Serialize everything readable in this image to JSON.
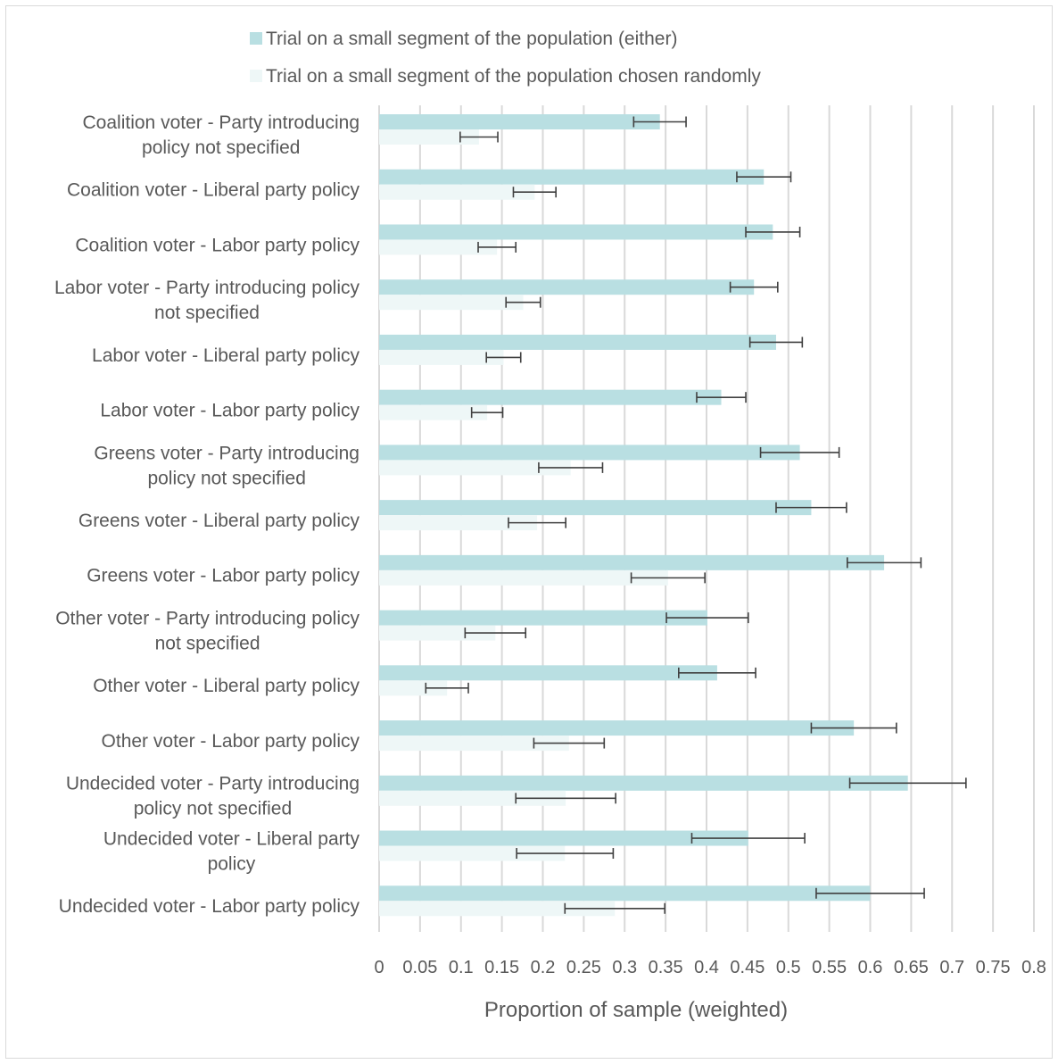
{
  "chart_data": {
    "type": "bar",
    "orientation": "horizontal",
    "categories": [
      "Coalition voter - Party introducing policy not specified",
      "Coalition voter - Liberal party policy",
      "Coalition voter - Labor party policy",
      "Labor voter - Party introducing policy not specified",
      "Labor voter - Liberal party policy",
      "Labor voter - Labor party policy",
      "Greens voter - Party introducing policy not specified",
      "Greens voter - Liberal party policy",
      "Greens voter - Labor party policy",
      "Other voter - Party introducing policy not specified",
      "Other voter - Liberal party policy",
      "Other voter - Labor party policy",
      "Undecided voter - Party introducing policy not specified",
      "Undecided voter - Liberal party policy",
      "Undecided voter - Labor party policy"
    ],
    "category_lines": [
      [
        "Coalition voter - Party introducing",
        "policy not specified"
      ],
      [
        "Coalition voter - Liberal party policy"
      ],
      [
        "Coalition voter - Labor party policy"
      ],
      [
        "Labor voter - Party introducing policy",
        "not specified"
      ],
      [
        "Labor voter - Liberal party policy"
      ],
      [
        "Labor voter - Labor party policy"
      ],
      [
        "Greens voter - Party introducing",
        "policy not specified"
      ],
      [
        "Greens voter - Liberal party policy"
      ],
      [
        "Greens voter - Labor party policy"
      ],
      [
        "Other voter - Party introducing policy",
        "not specified"
      ],
      [
        "Other voter - Liberal party policy"
      ],
      [
        "Other voter - Labor party policy"
      ],
      [
        "Undecided voter - Party introducing",
        "policy not specified"
      ],
      [
        "Undecided voter - Liberal party",
        "policy"
      ],
      [
        "Undecided voter - Labor party policy"
      ]
    ],
    "series": [
      {
        "name": "Trial on a small segment of the population (either)",
        "color": "#b9dfe2",
        "values": [
          0.343,
          0.47,
          0.481,
          0.458,
          0.485,
          0.418,
          0.514,
          0.528,
          0.617,
          0.401,
          0.413,
          0.58,
          0.646,
          0.451,
          0.6
        ],
        "error_low": [
          0.311,
          0.437,
          0.448,
          0.429,
          0.453,
          0.388,
          0.466,
          0.485,
          0.572,
          0.351,
          0.366,
          0.528,
          0.575,
          0.382,
          0.534
        ],
        "error_high": [
          0.375,
          0.503,
          0.514,
          0.487,
          0.517,
          0.448,
          0.562,
          0.571,
          0.662,
          0.451,
          0.46,
          0.632,
          0.717,
          0.52,
          0.666
        ]
      },
      {
        "name": "Trial on a small segment of the population chosen randomly",
        "color": "#eef7f7",
        "values": [
          0.122,
          0.19,
          0.144,
          0.176,
          0.152,
          0.132,
          0.234,
          0.193,
          0.353,
          0.142,
          0.083,
          0.232,
          0.228,
          0.227,
          0.288
        ],
        "error_low": [
          0.099,
          0.164,
          0.121,
          0.155,
          0.131,
          0.113,
          0.195,
          0.158,
          0.308,
          0.105,
          0.057,
          0.189,
          0.167,
          0.168,
          0.227
        ],
        "error_high": [
          0.145,
          0.216,
          0.167,
          0.197,
          0.173,
          0.151,
          0.273,
          0.228,
          0.398,
          0.179,
          0.109,
          0.275,
          0.289,
          0.286,
          0.349
        ]
      }
    ],
    "xlabel": "Proportion of sample (weighted)",
    "xlim": [
      0,
      0.8
    ],
    "xticks": [
      0,
      0.05,
      0.1,
      0.15,
      0.2,
      0.25,
      0.3,
      0.35,
      0.4,
      0.45,
      0.5,
      0.55,
      0.6,
      0.65,
      0.7,
      0.75,
      0.8
    ],
    "xtick_labels": [
      "0",
      "0.05",
      "0.1",
      "0.15",
      "0.2",
      "0.25",
      "0.3",
      "0.35",
      "0.4",
      "0.45",
      "0.5",
      "0.55",
      "0.6",
      "0.65",
      "0.7",
      "0.75",
      "0.8"
    ],
    "grid": "vertical",
    "legend_position": "top",
    "colors": {
      "text": "#595959",
      "grid": "#d9d9d9",
      "error_bar": "#404040"
    }
  }
}
